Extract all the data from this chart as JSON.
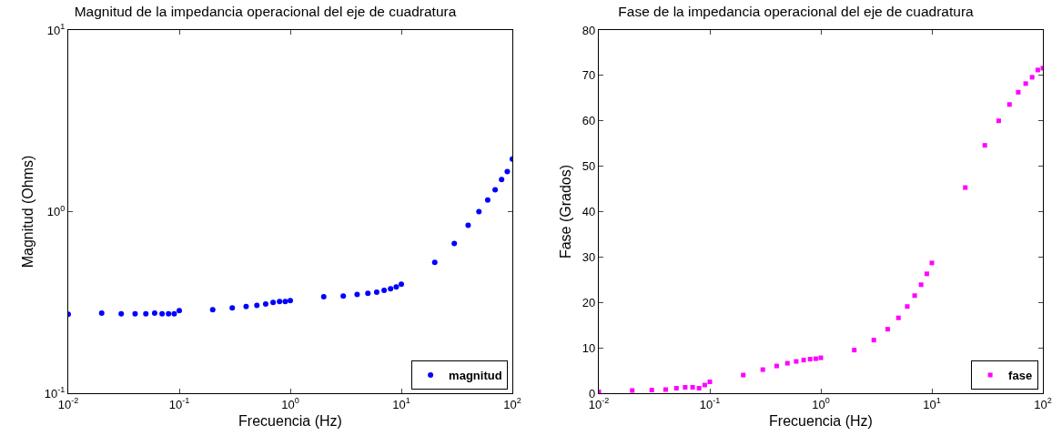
{
  "chart_data": [
    {
      "type": "scatter",
      "title": "Magnitud de la impedancia operacional del eje de cuadratura",
      "xlabel": "Frecuencia (Hz)",
      "ylabel": "Magnitud (Ohms)",
      "x": [
        0.01,
        0.02,
        0.03,
        0.04,
        0.05,
        0.06,
        0.07,
        0.08,
        0.09,
        0.1,
        0.2,
        0.3,
        0.4,
        0.5,
        0.6,
        0.7,
        0.8,
        0.9,
        1,
        2,
        3,
        4,
        5,
        6,
        7,
        8,
        9,
        10,
        20,
        30,
        40,
        50,
        60,
        70,
        80,
        90,
        100
      ],
      "series": [
        {
          "name": "magnitud",
          "color": "#0000ff",
          "values": [
            0.272,
            0.276,
            0.274,
            0.274,
            0.274,
            0.276,
            0.274,
            0.274,
            0.274,
            0.285,
            0.288,
            0.295,
            0.3,
            0.305,
            0.31,
            0.316,
            0.32,
            0.32,
            0.324,
            0.34,
            0.343,
            0.35,
            0.355,
            0.36,
            0.368,
            0.376,
            0.385,
            0.398,
            0.525,
            0.668,
            0.84,
            1.0,
            1.16,
            1.32,
            1.5,
            1.66,
            1.95
          ]
        }
      ],
      "log": "xy",
      "xlim": [
        0.01,
        100
      ],
      "ylim": [
        0.1,
        10
      ],
      "xticks": [
        {
          "value": 0.01,
          "label": "10$^{-2}$"
        },
        {
          "value": 0.1,
          "label": "10$^{-1}$"
        },
        {
          "value": 1,
          "label": "10$^{0}$"
        },
        {
          "value": 10,
          "label": "10$^{1}$"
        },
        {
          "value": 100,
          "label": "10$^{2}$"
        }
      ],
      "yticks": [
        {
          "value": 0.1,
          "label": "10$^{-1}$"
        },
        {
          "value": 1,
          "label": "10$^{0}$"
        },
        {
          "value": 10,
          "label": "10$^{1}$"
        }
      ],
      "grid": false,
      "legend": "bottom right",
      "marker": "circle",
      "line_style": "none"
    },
    {
      "type": "scatter",
      "title": "Fase de la impedancia operacional del eje de cuadratura",
      "xlabel": "Frecuencia (Hz)",
      "ylabel": "Fase (Grados)",
      "x": [
        0.01,
        0.02,
        0.03,
        0.04,
        0.05,
        0.06,
        0.07,
        0.08,
        0.09,
        0.1,
        0.2,
        0.3,
        0.4,
        0.5,
        0.6,
        0.7,
        0.8,
        0.9,
        1,
        2,
        3,
        4,
        5,
        6,
        7,
        8,
        9,
        10,
        20,
        30,
        40,
        50,
        60,
        70,
        80,
        90,
        100
      ],
      "series": [
        {
          "name": "fase",
          "color": "#ff00ff",
          "values": [
            0.3,
            0.6,
            0.7,
            0.8,
            1.1,
            1.3,
            1.3,
            1.1,
            1.8,
            2.5,
            4,
            5.2,
            6,
            6.6,
            7,
            7.3,
            7.5,
            7.6,
            7.8,
            9.5,
            11.7,
            14.1,
            16.6,
            19.1,
            21.5,
            23.9,
            26.3,
            28.7,
            45.3,
            54.6,
            60,
            63.6,
            66.3,
            68.2,
            69.6,
            71.2,
            71.6
          ]
        }
      ],
      "log": "x",
      "xlim": [
        0.01,
        100
      ],
      "ylim": [
        0,
        80
      ],
      "xticks": [
        {
          "value": 0.01,
          "label": "10$^{-2}$"
        },
        {
          "value": 0.1,
          "label": "10$^{-1}$"
        },
        {
          "value": 1,
          "label": "10$^{0}$"
        },
        {
          "value": 10,
          "label": "10$^{1}$"
        },
        {
          "value": 100,
          "label": "10$^{2}$"
        }
      ],
      "yticks": [
        0,
        10,
        20,
        30,
        40,
        50,
        60,
        70,
        80
      ],
      "grid": false,
      "legend": "bottom right",
      "marker": "square",
      "line_style": "none"
    }
  ]
}
